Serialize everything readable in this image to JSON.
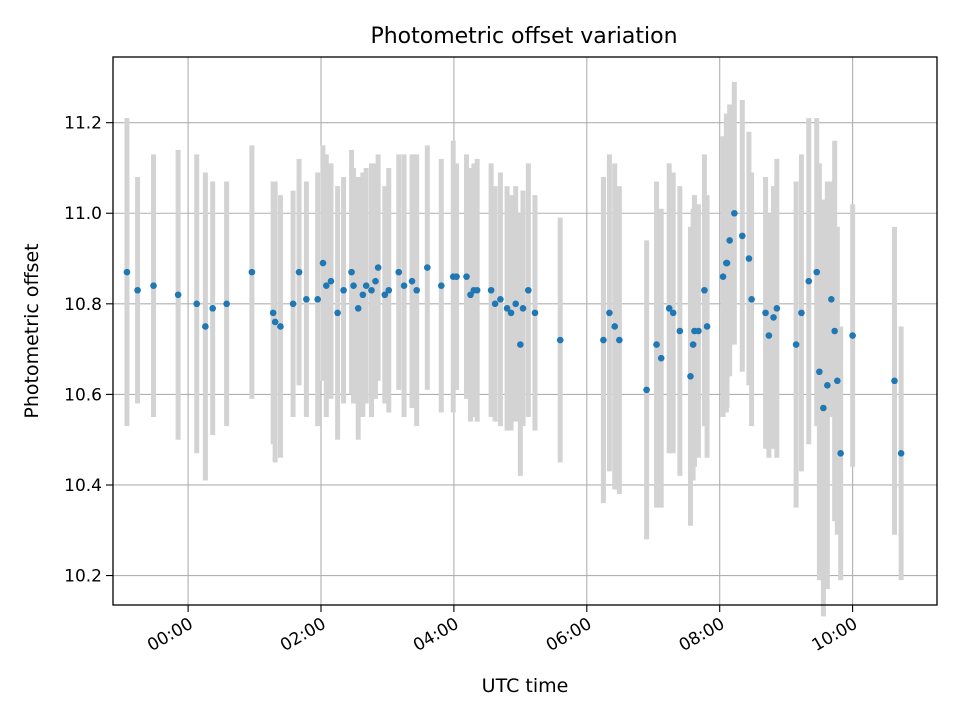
{
  "chart_data": {
    "type": "scatter",
    "title": "Photometric offset variation",
    "xlabel": "UTC time",
    "ylabel": "Photometric offset",
    "x_unit": "hours (UTC)",
    "xlim": [
      -1.13,
      11.27
    ],
    "ylim": [
      10.135,
      11.345
    ],
    "x_ticks": [
      {
        "value": 0,
        "label": "00:00"
      },
      {
        "value": 2,
        "label": "02:00"
      },
      {
        "value": 4,
        "label": "04:00"
      },
      {
        "value": 6,
        "label": "06:00"
      },
      {
        "value": 8,
        "label": "08:00"
      },
      {
        "value": 10,
        "label": "10:00"
      }
    ],
    "y_ticks": [
      {
        "value": 10.2,
        "label": "10.2"
      },
      {
        "value": 10.4,
        "label": "10.4"
      },
      {
        "value": 10.6,
        "label": "10.6"
      },
      {
        "value": 10.8,
        "label": "10.8"
      },
      {
        "value": 11.0,
        "label": "11.0"
      },
      {
        "value": 11.2,
        "label": "11.2"
      }
    ],
    "grid": true,
    "legend": "none",
    "colors": {
      "point": "#1f77b4",
      "errorbar": "#d3d3d3",
      "grid": "#b0b0b0"
    },
    "series": [
      {
        "x": [
          -0.92,
          -0.76,
          -0.52,
          -0.15,
          0.13,
          0.26,
          0.37,
          0.58,
          0.96,
          1.28,
          1.31,
          1.39,
          1.58,
          1.67,
          1.78,
          1.95,
          2.03,
          2.08,
          2.15,
          2.25,
          2.34,
          2.46,
          2.49,
          2.56,
          2.63,
          2.68,
          2.76,
          2.82,
          2.86,
          2.96,
          3.02,
          3.17,
          3.25,
          3.37,
          3.44,
          3.6,
          3.81,
          3.99,
          4.04,
          4.19,
          4.25,
          4.3,
          4.35,
          4.56,
          4.62,
          4.7,
          4.8,
          4.86,
          4.93,
          5.0,
          5.04,
          5.12,
          5.22,
          5.6,
          6.25,
          6.34,
          6.42,
          6.49,
          6.9,
          7.05,
          7.12,
          7.24,
          7.3,
          7.4,
          7.56,
          7.6,
          7.62,
          7.68,
          7.77,
          7.81,
          8.05,
          8.1,
          8.11,
          8.15,
          8.22,
          8.34,
          8.44,
          8.48,
          8.69,
          8.74,
          8.81,
          8.86,
          9.15,
          9.23,
          9.34,
          9.46,
          9.5,
          9.56,
          9.62,
          9.68,
          9.73,
          9.77,
          9.82,
          10.0,
          10.63,
          10.73
        ],
        "y": [
          10.87,
          10.83,
          10.84,
          10.82,
          10.8,
          10.75,
          10.79,
          10.8,
          10.87,
          10.78,
          10.76,
          10.75,
          10.8,
          10.87,
          10.81,
          10.81,
          10.89,
          10.84,
          10.85,
          10.78,
          10.83,
          10.87,
          10.84,
          10.79,
          10.82,
          10.84,
          10.83,
          10.85,
          10.88,
          10.82,
          10.83,
          10.87,
          10.84,
          10.85,
          10.83,
          10.88,
          10.84,
          10.86,
          10.86,
          10.86,
          10.82,
          10.83,
          10.83,
          10.83,
          10.8,
          10.81,
          10.79,
          10.78,
          10.8,
          10.71,
          10.79,
          10.83,
          10.78,
          10.72,
          10.72,
          10.78,
          10.75,
          10.72,
          10.61,
          10.71,
          10.68,
          10.79,
          10.78,
          10.74,
          10.64,
          10.71,
          10.74,
          10.74,
          10.83,
          10.75,
          10.86,
          10.89,
          10.89,
          10.94,
          11.0,
          10.95,
          10.9,
          10.81,
          10.78,
          10.73,
          10.77,
          10.79,
          10.71,
          10.78,
          10.85,
          10.87,
          10.65,
          10.57,
          10.62,
          10.81,
          10.74,
          10.63,
          10.47,
          10.73,
          10.63,
          10.47
        ],
        "yerr": [
          0.34,
          0.25,
          0.29,
          0.32,
          0.33,
          0.34,
          0.28,
          0.27,
          0.28,
          0.29,
          0.31,
          0.29,
          0.25,
          0.25,
          0.26,
          0.28,
          0.26,
          0.29,
          0.26,
          0.28,
          0.25,
          0.27,
          0.26,
          0.29,
          0.27,
          0.26,
          0.28,
          0.26,
          0.25,
          0.24,
          0.27,
          0.26,
          0.29,
          0.28,
          0.3,
          0.27,
          0.28,
          0.3,
          0.25,
          0.27,
          0.28,
          0.28,
          0.29,
          0.28,
          0.26,
          0.28,
          0.27,
          0.26,
          0.26,
          0.29,
          0.26,
          0.28,
          0.26,
          0.27,
          0.36,
          0.35,
          0.36,
          0.34,
          0.33,
          0.36,
          0.33,
          0.32,
          0.31,
          0.32,
          0.33,
          0.3,
          0.3,
          0.28,
          0.3,
          0.29,
          0.31,
          0.33,
          0.32,
          0.3,
          0.29,
          0.3,
          0.28,
          0.28,
          0.3,
          0.27,
          0.29,
          0.33,
          0.36,
          0.35,
          0.36,
          0.34,
          0.46,
          0.46,
          0.45,
          0.26,
          0.42,
          0.34,
          0.28,
          0.29,
          0.34,
          0.28
        ]
      }
    ]
  }
}
